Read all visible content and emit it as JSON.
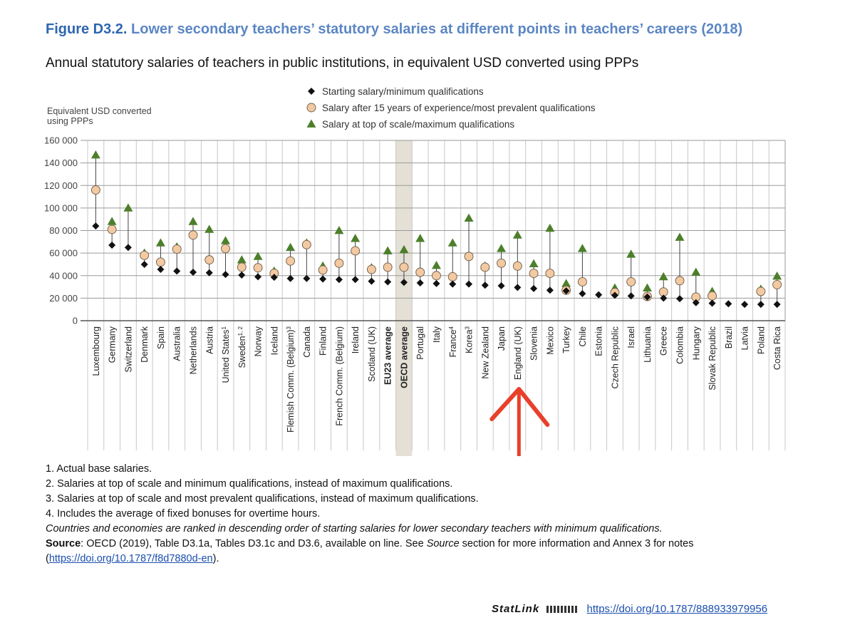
{
  "header": {
    "figure_number": "Figure D3.2.",
    "figure_title": "Lower secondary teachers’ statutory salaries at different points in teachers’ careers (2018)",
    "subtitle": "Annual statutory salaries of teachers in public institutions, in equivalent USD converted using PPPs"
  },
  "chart_data": {
    "type": "scatter",
    "ylabel_lines": [
      "Equivalent USD converted",
      "using PPPs"
    ],
    "ylim": [
      0,
      160000
    ],
    "yticks": [
      0,
      20000,
      40000,
      60000,
      80000,
      100000,
      120000,
      140000,
      160000
    ],
    "ytick_labels": [
      "0",
      "20 000",
      "40 000",
      "60 000",
      "80 000",
      "100 000",
      "120 000",
      "140 000",
      "160 000"
    ],
    "grid": true,
    "legend_placement": "top-center",
    "highlighted_category": "OECD average",
    "bold_categories": [
      "EU23 average",
      "OECD average"
    ],
    "categories": [
      {
        "name": "Luxembourg",
        "sup": ""
      },
      {
        "name": "Germany",
        "sup": ""
      },
      {
        "name": "Switzerland",
        "sup": ""
      },
      {
        "name": "Denmark",
        "sup": ""
      },
      {
        "name": "Spain",
        "sup": ""
      },
      {
        "name": "Australia",
        "sup": ""
      },
      {
        "name": "Netherlands",
        "sup": ""
      },
      {
        "name": "Austria",
        "sup": ""
      },
      {
        "name": "United States",
        "sup": "1"
      },
      {
        "name": "Sweden",
        "sup": "1, 2"
      },
      {
        "name": "Norway",
        "sup": ""
      },
      {
        "name": "Iceland",
        "sup": ""
      },
      {
        "name": "Flemish Comm. (Belgium)",
        "sup": "3"
      },
      {
        "name": "Canada",
        "sup": ""
      },
      {
        "name": "Finland",
        "sup": ""
      },
      {
        "name": "French Comm. (Belgium)",
        "sup": ""
      },
      {
        "name": "Ireland",
        "sup": ""
      },
      {
        "name": "Scotland (UK)",
        "sup": ""
      },
      {
        "name": "EU23 average",
        "sup": ""
      },
      {
        "name": "OECD average",
        "sup": ""
      },
      {
        "name": "Portugal",
        "sup": ""
      },
      {
        "name": "Italy",
        "sup": ""
      },
      {
        "name": "France",
        "sup": "4"
      },
      {
        "name": "Korea",
        "sup": "3"
      },
      {
        "name": "New Zealand",
        "sup": ""
      },
      {
        "name": "Japan",
        "sup": ""
      },
      {
        "name": "England (UK)",
        "sup": ""
      },
      {
        "name": "Slovenia",
        "sup": ""
      },
      {
        "name": "Mexico",
        "sup": ""
      },
      {
        "name": "Turkey",
        "sup": ""
      },
      {
        "name": "Chile",
        "sup": ""
      },
      {
        "name": "Estonia",
        "sup": ""
      },
      {
        "name": "Czech Republic",
        "sup": ""
      },
      {
        "name": "Israel",
        "sup": ""
      },
      {
        "name": "Lithuania",
        "sup": ""
      },
      {
        "name": "Greece",
        "sup": ""
      },
      {
        "name": "Colombia",
        "sup": ""
      },
      {
        "name": "Hungary",
        "sup": ""
      },
      {
        "name": "Slovak Republic",
        "sup": ""
      },
      {
        "name": "Brazil",
        "sup": ""
      },
      {
        "name": "Latvia",
        "sup": ""
      },
      {
        "name": "Poland",
        "sup": ""
      },
      {
        "name": "Costa Rica",
        "sup": ""
      }
    ],
    "series": [
      {
        "name": "Starting salary/minimum qualifications",
        "marker": "diamond",
        "color": "#111111",
        "values": [
          84000,
          67000,
          65000,
          50000,
          45500,
          44000,
          43000,
          42500,
          41000,
          40500,
          39000,
          38500,
          37500,
          37500,
          37000,
          36500,
          36500,
          35000,
          34500,
          34000,
          33500,
          33000,
          32500,
          32500,
          31500,
          31000,
          29500,
          28500,
          27000,
          26500,
          24000,
          23000,
          22500,
          22000,
          21000,
          20000,
          19500,
          16000,
          15500,
          15000,
          14500,
          14500,
          14500
        ]
      },
      {
        "name": "Salary after 15 years of experience/most prevalent qualifications",
        "marker": "circle",
        "color": "#f2c9a1",
        "values": [
          116000,
          81000,
          null,
          58000,
          52000,
          63500,
          76000,
          54000,
          64000,
          47500,
          47000,
          42000,
          53000,
          67500,
          45000,
          51000,
          62000,
          45500,
          47500,
          47500,
          43000,
          40000,
          39000,
          57000,
          47500,
          51000,
          48500,
          42000,
          42000,
          27000,
          34500,
          null,
          25000,
          34500,
          21500,
          25500,
          35500,
          21000,
          22000,
          null,
          null,
          26000,
          32000
        ]
      },
      {
        "name": "Salary at top of scale/maximum qualifications",
        "marker": "triangle",
        "color": "#4d7f2b",
        "values": [
          147000,
          88000,
          100000,
          60000,
          69000,
          65500,
          88000,
          81000,
          71000,
          54000,
          57000,
          44000,
          65000,
          69000,
          48500,
          80000,
          73000,
          47000,
          62000,
          63000,
          73000,
          49000,
          69000,
          91000,
          48500,
          64000,
          76000,
          50500,
          82000,
          33000,
          64000,
          null,
          29000,
          59000,
          29000,
          39000,
          74000,
          43000,
          26000,
          null,
          null,
          28000,
          39500
        ]
      }
    ]
  },
  "notes": {
    "n1": "1. Actual base salaries.",
    "n2": "2. Salaries at top of scale and minimum qualifications, instead of maximum qualifications.",
    "n3": "3. Salaries at top of scale and most prevalent qualifications, instead of maximum qualifications.",
    "n4": "4. Includes the average of fixed bonuses for overtime hours.",
    "ranking": "Countries and economies are ranked in descending order of starting salaries for lower secondary teachers with minimum qualifications.",
    "source_label": "Source",
    "source_text_1": ": OECD (2019), Table D3.1a, Tables D3.1c and D3.6, available on line. See ",
    "source_italic": "Source",
    "source_text_2": " section for more information and Annex 3 for notes",
    "link_open": "(",
    "link": "https://doi.org/10.1787/f8d7880d-en",
    "link_close": ")."
  },
  "statlink": {
    "label": "StatLink",
    "url": "https://doi.org/10.1787/888933979956"
  },
  "colors": {
    "title_number": "#2e66b0",
    "title": "#5b86c4",
    "highlight_band": "#e4e0d6",
    "arrow": "#e8402b",
    "link": "#1a4fb0"
  }
}
